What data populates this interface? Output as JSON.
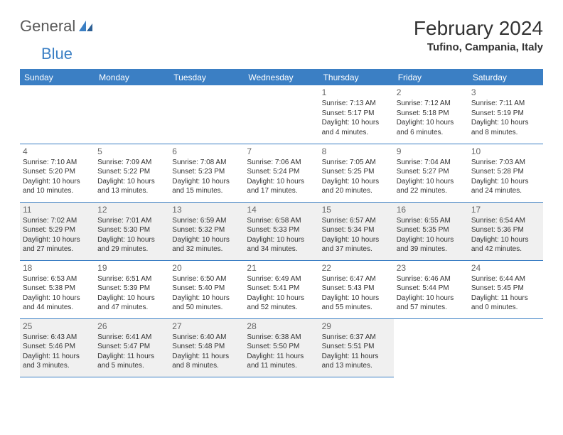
{
  "brand": {
    "part1": "General",
    "part2": "Blue"
  },
  "title": "February 2024",
  "location": "Tufino, Campania, Italy",
  "colors": {
    "accent": "#3b7fc4",
    "shade": "#f0f0f0",
    "text": "#333333",
    "muted": "#666666"
  },
  "day_headers": [
    "Sunday",
    "Monday",
    "Tuesday",
    "Wednesday",
    "Thursday",
    "Friday",
    "Saturday"
  ],
  "weeks": [
    [
      null,
      null,
      null,
      null,
      {
        "n": "1",
        "sr": "Sunrise: 7:13 AM",
        "ss": "Sunset: 5:17 PM",
        "dl": "Daylight: 10 hours and 4 minutes."
      },
      {
        "n": "2",
        "sr": "Sunrise: 7:12 AM",
        "ss": "Sunset: 5:18 PM",
        "dl": "Daylight: 10 hours and 6 minutes."
      },
      {
        "n": "3",
        "sr": "Sunrise: 7:11 AM",
        "ss": "Sunset: 5:19 PM",
        "dl": "Daylight: 10 hours and 8 minutes."
      }
    ],
    [
      {
        "n": "4",
        "sr": "Sunrise: 7:10 AM",
        "ss": "Sunset: 5:20 PM",
        "dl": "Daylight: 10 hours and 10 minutes."
      },
      {
        "n": "5",
        "sr": "Sunrise: 7:09 AM",
        "ss": "Sunset: 5:22 PM",
        "dl": "Daylight: 10 hours and 13 minutes."
      },
      {
        "n": "6",
        "sr": "Sunrise: 7:08 AM",
        "ss": "Sunset: 5:23 PM",
        "dl": "Daylight: 10 hours and 15 minutes."
      },
      {
        "n": "7",
        "sr": "Sunrise: 7:06 AM",
        "ss": "Sunset: 5:24 PM",
        "dl": "Daylight: 10 hours and 17 minutes."
      },
      {
        "n": "8",
        "sr": "Sunrise: 7:05 AM",
        "ss": "Sunset: 5:25 PM",
        "dl": "Daylight: 10 hours and 20 minutes."
      },
      {
        "n": "9",
        "sr": "Sunrise: 7:04 AM",
        "ss": "Sunset: 5:27 PM",
        "dl": "Daylight: 10 hours and 22 minutes."
      },
      {
        "n": "10",
        "sr": "Sunrise: 7:03 AM",
        "ss": "Sunset: 5:28 PM",
        "dl": "Daylight: 10 hours and 24 minutes."
      }
    ],
    [
      {
        "n": "11",
        "sr": "Sunrise: 7:02 AM",
        "ss": "Sunset: 5:29 PM",
        "dl": "Daylight: 10 hours and 27 minutes."
      },
      {
        "n": "12",
        "sr": "Sunrise: 7:01 AM",
        "ss": "Sunset: 5:30 PM",
        "dl": "Daylight: 10 hours and 29 minutes."
      },
      {
        "n": "13",
        "sr": "Sunrise: 6:59 AM",
        "ss": "Sunset: 5:32 PM",
        "dl": "Daylight: 10 hours and 32 minutes."
      },
      {
        "n": "14",
        "sr": "Sunrise: 6:58 AM",
        "ss": "Sunset: 5:33 PM",
        "dl": "Daylight: 10 hours and 34 minutes."
      },
      {
        "n": "15",
        "sr": "Sunrise: 6:57 AM",
        "ss": "Sunset: 5:34 PM",
        "dl": "Daylight: 10 hours and 37 minutes."
      },
      {
        "n": "16",
        "sr": "Sunrise: 6:55 AM",
        "ss": "Sunset: 5:35 PM",
        "dl": "Daylight: 10 hours and 39 minutes."
      },
      {
        "n": "17",
        "sr": "Sunrise: 6:54 AM",
        "ss": "Sunset: 5:36 PM",
        "dl": "Daylight: 10 hours and 42 minutes."
      }
    ],
    [
      {
        "n": "18",
        "sr": "Sunrise: 6:53 AM",
        "ss": "Sunset: 5:38 PM",
        "dl": "Daylight: 10 hours and 44 minutes."
      },
      {
        "n": "19",
        "sr": "Sunrise: 6:51 AM",
        "ss": "Sunset: 5:39 PM",
        "dl": "Daylight: 10 hours and 47 minutes."
      },
      {
        "n": "20",
        "sr": "Sunrise: 6:50 AM",
        "ss": "Sunset: 5:40 PM",
        "dl": "Daylight: 10 hours and 50 minutes."
      },
      {
        "n": "21",
        "sr": "Sunrise: 6:49 AM",
        "ss": "Sunset: 5:41 PM",
        "dl": "Daylight: 10 hours and 52 minutes."
      },
      {
        "n": "22",
        "sr": "Sunrise: 6:47 AM",
        "ss": "Sunset: 5:43 PM",
        "dl": "Daylight: 10 hours and 55 minutes."
      },
      {
        "n": "23",
        "sr": "Sunrise: 6:46 AM",
        "ss": "Sunset: 5:44 PM",
        "dl": "Daylight: 10 hours and 57 minutes."
      },
      {
        "n": "24",
        "sr": "Sunrise: 6:44 AM",
        "ss": "Sunset: 5:45 PM",
        "dl": "Daylight: 11 hours and 0 minutes."
      }
    ],
    [
      {
        "n": "25",
        "sr": "Sunrise: 6:43 AM",
        "ss": "Sunset: 5:46 PM",
        "dl": "Daylight: 11 hours and 3 minutes."
      },
      {
        "n": "26",
        "sr": "Sunrise: 6:41 AM",
        "ss": "Sunset: 5:47 PM",
        "dl": "Daylight: 11 hours and 5 minutes."
      },
      {
        "n": "27",
        "sr": "Sunrise: 6:40 AM",
        "ss": "Sunset: 5:48 PM",
        "dl": "Daylight: 11 hours and 8 minutes."
      },
      {
        "n": "28",
        "sr": "Sunrise: 6:38 AM",
        "ss": "Sunset: 5:50 PM",
        "dl": "Daylight: 11 hours and 11 minutes."
      },
      {
        "n": "29",
        "sr": "Sunrise: 6:37 AM",
        "ss": "Sunset: 5:51 PM",
        "dl": "Daylight: 11 hours and 13 minutes."
      },
      null,
      null
    ]
  ],
  "shaded_weeks": [
    2,
    4
  ]
}
